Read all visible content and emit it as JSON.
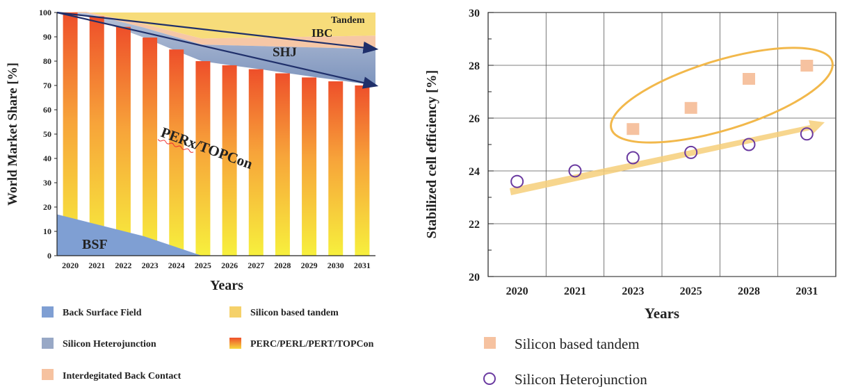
{
  "chart_data": [
    {
      "type": "area",
      "ylabel": "World Market Share [%]",
      "xlabel": "Years",
      "ylim": [
        0,
        100
      ],
      "y_ticks": [
        0,
        10,
        20,
        30,
        40,
        50,
        60,
        70,
        80,
        90,
        100
      ],
      "categories": [
        "2020",
        "2021",
        "2022",
        "2023",
        "2024",
        "2025",
        "2026",
        "2027",
        "2028",
        "2029",
        "2030",
        "2031"
      ],
      "series": [
        {
          "name": "BSF",
          "values": [
            17,
            14,
            11,
            8,
            4,
            0,
            0,
            0,
            0,
            0,
            0,
            0
          ]
        },
        {
          "name": "PERx/TOPCon",
          "values": [
            83,
            84.4,
            83.1,
            81.7,
            80.8,
            80,
            78.3,
            76.7,
            75,
            73.3,
            71.7,
            70
          ]
        },
        {
          "name": "SHJ",
          "values": [
            0,
            1.4,
            2.7,
            4.1,
            5.5,
            6.8,
            8.2,
            9.5,
            10.9,
            12.3,
            13.6,
            15
          ]
        },
        {
          "name": "IBC",
          "values": [
            0,
            0.5,
            1.0,
            1.5,
            2.0,
            2.5,
            3.0,
            3.5,
            4.0,
            4.5,
            5.0,
            5.5
          ]
        },
        {
          "name": "Tandem",
          "values": [
            0,
            0.5,
            0.9,
            1.4,
            1.8,
            2.3,
            2.7,
            3.2,
            3.6,
            4.1,
            4.5,
            5
          ]
        }
      ],
      "legend": [
        {
          "label": "Back Surface Field",
          "color": "#7f9fd3"
        },
        {
          "label": "Silicon based tandem",
          "color": "#f5d16a"
        },
        {
          "label": "Silicon Heterojunction",
          "color": "#98a8c6"
        },
        {
          "label": "PERC/PERL/PERT/TOPCon",
          "color": "#ee5a2c"
        },
        {
          "label": "Interdegitated Back Contact",
          "color": "#f6c2a0"
        }
      ],
      "annotations": [
        "Tandem",
        "IBC",
        "SHJ",
        "PERx/TOPCon",
        "BSF"
      ]
    },
    {
      "type": "scatter",
      "ylabel": "Stabilized cell efficiency [%]",
      "xlabel": "Years",
      "ylim": [
        20,
        30
      ],
      "y_ticks": [
        20,
        22,
        24,
        26,
        28,
        30
      ],
      "categories": [
        "2020",
        "2021",
        "2023",
        "2025",
        "2028",
        "2031"
      ],
      "series": [
        {
          "name": "Silicon based tandem",
          "x": [
            "2023",
            "2025",
            "2028",
            "2031"
          ],
          "values": [
            25.6,
            26.4,
            27.5,
            28.0
          ]
        },
        {
          "name": "Silicon Heterojunction",
          "x": [
            "2020",
            "2021",
            "2023",
            "2025",
            "2028",
            "2031"
          ],
          "values": [
            23.6,
            24.0,
            24.5,
            24.7,
            25.0,
            25.4
          ]
        }
      ],
      "grid": true,
      "legend_position": "bottom"
    }
  ],
  "colors": {
    "bsf": "#7f9fd3",
    "shj": "#98a8c6",
    "ibc": "#f6c2a0",
    "tandem": "#f5d16a",
    "perc_top": "#ee5a2c",
    "perc_bottom": "#f5ec3c",
    "tandem_marker": "#f6c2a0",
    "shj_marker": "#6a3aa0",
    "ellipse": "#f2b84b",
    "arrow": "#f6cf7a",
    "shj_arrow": "#1f2f6a"
  }
}
